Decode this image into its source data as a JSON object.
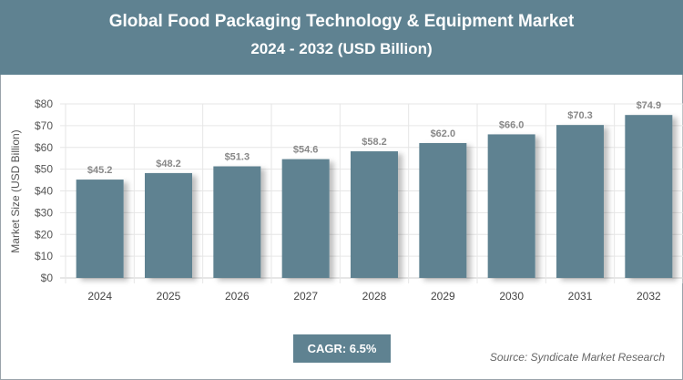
{
  "title": "Global Food Packaging Technology & Equipment Market",
  "subtitle": "2024 - 2032 (USD Billion)",
  "cagr": "CAGR: 6.5%",
  "source": "Source: Syndicate Market Research",
  "colors": {
    "bar": "#5f8291",
    "header": "#5f8291"
  },
  "chart_data": {
    "type": "bar",
    "title": "Global Food Packaging Technology & Equipment Market",
    "subtitle": "2024 - 2032 (USD Billion)",
    "xlabel": "",
    "ylabel": "Market Size (USD Billion)",
    "categories": [
      "2024",
      "2025",
      "2026",
      "2027",
      "2028",
      "2029",
      "2030",
      "2031",
      "2032"
    ],
    "values": [
      45.2,
      48.2,
      51.3,
      54.6,
      58.2,
      62.0,
      66.0,
      70.3,
      74.9
    ],
    "data_labels": [
      "$45.2",
      "$48.2",
      "$51.3",
      "$54.6",
      "$58.2",
      "$62.0",
      "$66.0",
      "$70.3",
      "$74.9"
    ],
    "ylim": [
      0,
      80
    ],
    "yticks": [
      "$0",
      "$10",
      "$20",
      "$30",
      "$40",
      "$50",
      "$60",
      "$70",
      "$80"
    ],
    "grid": true
  }
}
